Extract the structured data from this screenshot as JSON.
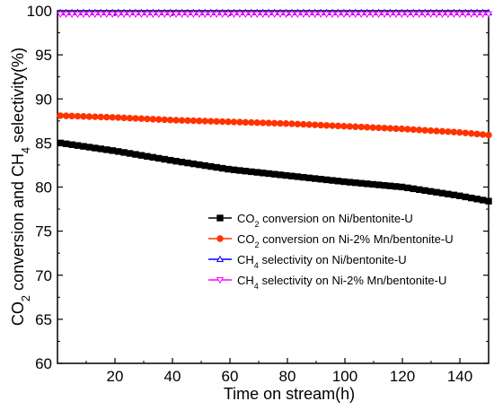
{
  "chart_data": {
    "type": "line",
    "xlabel": "Time on stream(h)",
    "ylabel": {
      "parts": [
        {
          "t": "CO",
          "sub": false
        },
        {
          "t": "2",
          "sub": true
        },
        {
          "t": " conversion and CH",
          "sub": false
        },
        {
          "t": "4",
          "sub": true
        },
        {
          "t": " selectivity(%)",
          "sub": false
        }
      ]
    },
    "xlim": [
      0,
      150
    ],
    "ylim": [
      60,
      100
    ],
    "xticks": [
      20,
      40,
      60,
      80,
      100,
      120,
      140
    ],
    "yticks": [
      60,
      65,
      70,
      75,
      80,
      85,
      90,
      95,
      100
    ],
    "grid": false,
    "legend_position": "right-middle",
    "series": [
      {
        "name": "CO2 conversion on Ni/bentonite-U",
        "legend": [
          {
            "t": "CO",
            "sub": false
          },
          {
            "t": "2",
            "sub": true
          },
          {
            "t": " conversion on Ni/bentonite-U",
            "sub": false
          }
        ],
        "color": "#000000",
        "marker": "square",
        "x_start": 1,
        "x_end": 150,
        "n": 75,
        "anchors": [
          [
            1,
            85.0
          ],
          [
            20,
            84.1
          ],
          [
            40,
            83.0
          ],
          [
            60,
            82.0
          ],
          [
            80,
            81.3
          ],
          [
            100,
            80.6
          ],
          [
            120,
            80.0
          ],
          [
            140,
            79.0
          ],
          [
            150,
            78.4
          ]
        ]
      },
      {
        "name": "CO2 conversion on Ni-2% Mn/bentonite-U",
        "legend": [
          {
            "t": "CO",
            "sub": false
          },
          {
            "t": "2",
            "sub": true
          },
          {
            "t": " conversion on Ni-2% Mn/bentonite-U",
            "sub": false
          }
        ],
        "color": "#ff3300",
        "marker": "circle",
        "x_start": 1,
        "x_end": 150,
        "n": 75,
        "anchors": [
          [
            1,
            88.1
          ],
          [
            20,
            87.9
          ],
          [
            40,
            87.6
          ],
          [
            60,
            87.4
          ],
          [
            80,
            87.2
          ],
          [
            100,
            86.9
          ],
          [
            120,
            86.6
          ],
          [
            140,
            86.2
          ],
          [
            150,
            85.9
          ]
        ]
      },
      {
        "name": "CH4 selectivity on Ni/bentonite-U",
        "legend": [
          {
            "t": "CH",
            "sub": false
          },
          {
            "t": "4",
            "sub": true
          },
          {
            "t": " selectivity on Ni/bentonite-U",
            "sub": false
          }
        ],
        "color": "#0000ff",
        "marker": "triangle",
        "x_start": 1,
        "x_end": 150,
        "n": 75,
        "anchors": [
          [
            1,
            99.8
          ],
          [
            150,
            99.8
          ]
        ]
      },
      {
        "name": "CH4 selectivity on Ni-2% Mn/bentonite-U",
        "legend": [
          {
            "t": "CH",
            "sub": false
          },
          {
            "t": "4",
            "sub": true
          },
          {
            "t": " selectivity on Ni-2% Mn/bentonite-U",
            "sub": false
          }
        ],
        "color": "#ff00ff",
        "marker": "triangle-down",
        "x_start": 1,
        "x_end": 150,
        "n": 75,
        "anchors": [
          [
            1,
            99.6
          ],
          [
            150,
            99.6
          ]
        ]
      }
    ]
  }
}
